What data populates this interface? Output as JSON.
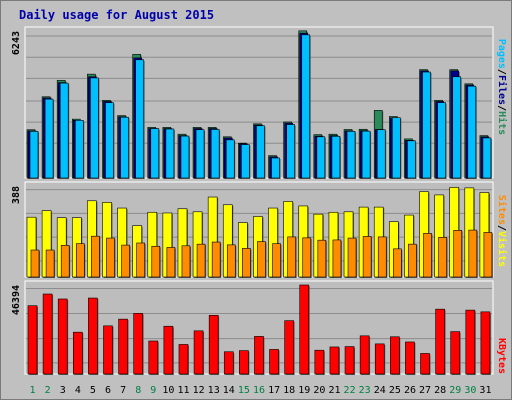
{
  "title": "Daily usage for August 2015",
  "axis_max": {
    "pages": "6243",
    "sites": "388",
    "kbytes": "46394"
  },
  "legend": {
    "pages": "Pages",
    "files": "Files",
    "hits": "Hits",
    "sites": "Sites",
    "visits": "Visits",
    "kbytes": "KBytes",
    "sep": "/"
  },
  "colors": {
    "background": "#c0c0c0",
    "hits": "#2a8a5a",
    "files": "#00008b",
    "pages": "#00bfff",
    "visits": "#ffff00",
    "sites": "#ff8c00",
    "kbytes": "#ff0000",
    "weekend_label": "#008040",
    "weekday_label": "#000000",
    "title": "#0000aa"
  },
  "chart_data": [
    {
      "type": "bar",
      "title": "Daily usage for August 2015",
      "categories": [
        "1",
        "2",
        "3",
        "4",
        "5",
        "6",
        "7",
        "8",
        "9",
        "10",
        "11",
        "12",
        "13",
        "14",
        "15",
        "16",
        "17",
        "18",
        "19",
        "20",
        "21",
        "22",
        "23",
        "24",
        "25",
        "26",
        "27",
        "28",
        "29",
        "30",
        "31"
      ],
      "weekend_days": [
        "1",
        "2",
        "8",
        "9",
        "15",
        "16",
        "22",
        "23",
        "29",
        "30"
      ],
      "ylim": [
        0,
        6243
      ],
      "series": [
        {
          "name": "Hits",
          "values": [
            2050,
            3450,
            4150,
            2500,
            4410,
            3300,
            2650,
            5250,
            2150,
            2150,
            1860,
            2150,
            2150,
            1750,
            1480,
            2300,
            950,
            2380,
            6250,
            1840,
            1860,
            2060,
            2070,
            2870,
            2610,
            1660,
            4600,
            3300,
            4600,
            4000,
            1800
          ]
        },
        {
          "name": "Files",
          "values": [
            2000,
            3400,
            4050,
            2450,
            4300,
            3250,
            2600,
            5100,
            2100,
            2100,
            1800,
            2100,
            2100,
            1700,
            1450,
            2250,
            900,
            2330,
            6150,
            1780,
            1800,
            2000,
            2010,
            2060,
            2550,
            1600,
            4550,
            3250,
            4550,
            3950,
            1750
          ]
        },
        {
          "name": "Pages",
          "values": [
            1980,
            3350,
            4030,
            2450,
            4250,
            3200,
            2580,
            5020,
            2100,
            2080,
            1780,
            2050,
            2060,
            1620,
            1420,
            2220,
            850,
            2270,
            6080,
            1750,
            1770,
            1980,
            1990,
            2050,
            2560,
            1580,
            4500,
            3200,
            4300,
            3900,
            1700
          ]
        }
      ]
    },
    {
      "type": "bar",
      "categories": [
        "1",
        "2",
        "3",
        "4",
        "5",
        "6",
        "7",
        "8",
        "9",
        "10",
        "11",
        "12",
        "13",
        "14",
        "15",
        "16",
        "17",
        "18",
        "19",
        "20",
        "21",
        "22",
        "23",
        "24",
        "25",
        "26",
        "27",
        "28",
        "29",
        "30",
        "31"
      ],
      "ylim": [
        0,
        388
      ],
      "series": [
        {
          "name": "Visits",
          "values": [
            255,
            283,
            253,
            253,
            325,
            318,
            294,
            219,
            276,
            273,
            291,
            278,
            341,
            308,
            232,
            258,
            294,
            322,
            303,
            268,
            276,
            278,
            298,
            298,
            236,
            264,
            364,
            350,
            382,
            380,
            360
          ]
        },
        {
          "name": "Sites",
          "values": [
            115,
            115,
            135,
            142,
            174,
            166,
            136,
            145,
            131,
            126,
            133,
            140,
            149,
            137,
            122,
            151,
            142,
            171,
            167,
            157,
            158,
            166,
            173,
            171,
            120,
            140,
            186,
            169,
            199,
            200,
            190
          ]
        }
      ]
    },
    {
      "type": "bar",
      "categories": [
        "1",
        "2",
        "3",
        "4",
        "5",
        "6",
        "7",
        "8",
        "9",
        "10",
        "11",
        "12",
        "13",
        "14",
        "15",
        "16",
        "17",
        "18",
        "19",
        "20",
        "21",
        "22",
        "23",
        "24",
        "25",
        "26",
        "27",
        "28",
        "29",
        "30",
        "31"
      ],
      "ylim": [
        0,
        46394
      ],
      "series": [
        {
          "name": "KBytes",
          "values": [
            35600,
            41700,
            39100,
            21800,
            39600,
            25100,
            28600,
            31600,
            17200,
            24900,
            15400,
            22500,
            30600,
            11600,
            12200,
            19600,
            12800,
            27800,
            46394,
            12400,
            14100,
            14300,
            19900,
            15700,
            19400,
            16700,
            10700,
            33800,
            22100,
            33300,
            32400
          ]
        }
      ]
    }
  ]
}
